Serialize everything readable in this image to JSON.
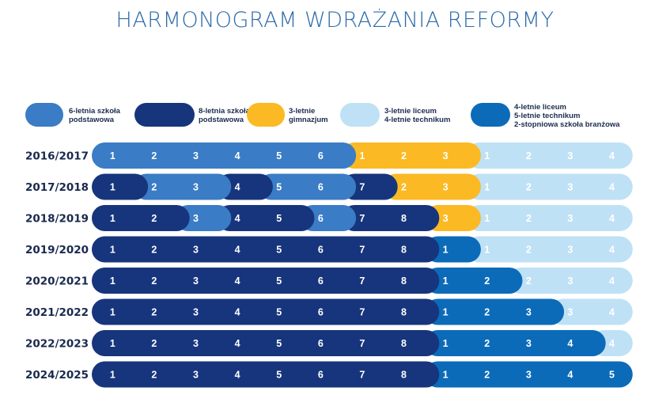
{
  "title": "HARMONOGRAM WDRAŻANIA REFORMY",
  "colors": {
    "sp6": "#3a7cc5",
    "sp8": "#17357c",
    "gim": "#fbb923",
    "old_hs": "#bfe1f5",
    "new_hs": "#0b6bb8"
  },
  "legend": [
    {
      "key": "sp6",
      "lines": [
        "6-letnia szkoła",
        "podstawowa"
      ]
    },
    {
      "key": "sp8",
      "lines": [
        "8-letnia szkoła",
        "podstawowa"
      ]
    },
    {
      "key": "gim",
      "lines": [
        "3-letnie",
        "gimnazjum"
      ]
    },
    {
      "key": "old_hs",
      "lines": [
        "3-letnie liceum",
        "4-letnie technikum"
      ]
    },
    {
      "key": "new_hs",
      "lines": [
        "4-letnie liceum",
        "5-letnie technikum",
        "2-stopniowa szkoła branżowa"
      ]
    }
  ],
  "chart_data": {
    "type": "table",
    "rows": [
      {
        "year": "2016/2017",
        "cells": [
          {
            "n": "1",
            "t": "sp6"
          },
          {
            "n": "2",
            "t": "sp6"
          },
          {
            "n": "3",
            "t": "sp6"
          },
          {
            "n": "4",
            "t": "sp6"
          },
          {
            "n": "5",
            "t": "sp6"
          },
          {
            "n": "6",
            "t": "sp6"
          },
          {
            "n": "1",
            "t": "gim"
          },
          {
            "n": "2",
            "t": "gim"
          },
          {
            "n": "3",
            "t": "gim"
          },
          {
            "n": "1",
            "t": "old_hs"
          },
          {
            "n": "2",
            "t": "old_hs"
          },
          {
            "n": "3",
            "t": "old_hs"
          },
          {
            "n": "4",
            "t": "old_hs"
          }
        ]
      },
      {
        "year": "2017/2018",
        "cells": [
          {
            "n": "1",
            "t": "sp8"
          },
          {
            "n": "2",
            "t": "sp6"
          },
          {
            "n": "3",
            "t": "sp6"
          },
          {
            "n": "4",
            "t": "sp8"
          },
          {
            "n": "5",
            "t": "sp6"
          },
          {
            "n": "6",
            "t": "sp6"
          },
          {
            "n": "7",
            "t": "sp8"
          },
          {
            "n": "2",
            "t": "gim"
          },
          {
            "n": "3",
            "t": "gim"
          },
          {
            "n": "1",
            "t": "old_hs"
          },
          {
            "n": "2",
            "t": "old_hs"
          },
          {
            "n": "3",
            "t": "old_hs"
          },
          {
            "n": "4",
            "t": "old_hs"
          }
        ]
      },
      {
        "year": "2018/2019",
        "cells": [
          {
            "n": "1",
            "t": "sp8"
          },
          {
            "n": "2",
            "t": "sp8"
          },
          {
            "n": "3",
            "t": "sp6"
          },
          {
            "n": "4",
            "t": "sp8"
          },
          {
            "n": "5",
            "t": "sp8"
          },
          {
            "n": "6",
            "t": "sp6"
          },
          {
            "n": "7",
            "t": "sp8"
          },
          {
            "n": "8",
            "t": "sp8"
          },
          {
            "n": "3",
            "t": "gim"
          },
          {
            "n": "1",
            "t": "old_hs"
          },
          {
            "n": "2",
            "t": "old_hs"
          },
          {
            "n": "3",
            "t": "old_hs"
          },
          {
            "n": "4",
            "t": "old_hs"
          }
        ]
      },
      {
        "year": "2019/2020",
        "cells": [
          {
            "n": "1",
            "t": "sp8"
          },
          {
            "n": "2",
            "t": "sp8"
          },
          {
            "n": "3",
            "t": "sp8"
          },
          {
            "n": "4",
            "t": "sp8"
          },
          {
            "n": "5",
            "t": "sp8"
          },
          {
            "n": "6",
            "t": "sp8"
          },
          {
            "n": "7",
            "t": "sp8"
          },
          {
            "n": "8",
            "t": "sp8"
          },
          {
            "n": "1",
            "t": "new_hs"
          },
          {
            "n": "1",
            "t": "old_hs"
          },
          {
            "n": "2",
            "t": "old_hs"
          },
          {
            "n": "3",
            "t": "old_hs"
          },
          {
            "n": "4",
            "t": "old_hs"
          }
        ]
      },
      {
        "year": "2020/2021",
        "cells": [
          {
            "n": "1",
            "t": "sp8"
          },
          {
            "n": "2",
            "t": "sp8"
          },
          {
            "n": "3",
            "t": "sp8"
          },
          {
            "n": "4",
            "t": "sp8"
          },
          {
            "n": "5",
            "t": "sp8"
          },
          {
            "n": "6",
            "t": "sp8"
          },
          {
            "n": "7",
            "t": "sp8"
          },
          {
            "n": "8",
            "t": "sp8"
          },
          {
            "n": "1",
            "t": "new_hs"
          },
          {
            "n": "2",
            "t": "new_hs"
          },
          {
            "n": "2",
            "t": "old_hs"
          },
          {
            "n": "3",
            "t": "old_hs"
          },
          {
            "n": "4",
            "t": "old_hs"
          }
        ]
      },
      {
        "year": "2021/2022",
        "cells": [
          {
            "n": "1",
            "t": "sp8"
          },
          {
            "n": "2",
            "t": "sp8"
          },
          {
            "n": "3",
            "t": "sp8"
          },
          {
            "n": "4",
            "t": "sp8"
          },
          {
            "n": "5",
            "t": "sp8"
          },
          {
            "n": "6",
            "t": "sp8"
          },
          {
            "n": "7",
            "t": "sp8"
          },
          {
            "n": "8",
            "t": "sp8"
          },
          {
            "n": "1",
            "t": "new_hs"
          },
          {
            "n": "2",
            "t": "new_hs"
          },
          {
            "n": "3",
            "t": "new_hs"
          },
          {
            "n": "3",
            "t": "old_hs"
          },
          {
            "n": "4",
            "t": "old_hs"
          }
        ]
      },
      {
        "year": "2022/2023",
        "cells": [
          {
            "n": "1",
            "t": "sp8"
          },
          {
            "n": "2",
            "t": "sp8"
          },
          {
            "n": "3",
            "t": "sp8"
          },
          {
            "n": "4",
            "t": "sp8"
          },
          {
            "n": "5",
            "t": "sp8"
          },
          {
            "n": "6",
            "t": "sp8"
          },
          {
            "n": "7",
            "t": "sp8"
          },
          {
            "n": "8",
            "t": "sp8"
          },
          {
            "n": "1",
            "t": "new_hs"
          },
          {
            "n": "2",
            "t": "new_hs"
          },
          {
            "n": "3",
            "t": "new_hs"
          },
          {
            "n": "4",
            "t": "new_hs"
          },
          {
            "n": "4",
            "t": "old_hs"
          }
        ]
      },
      {
        "year": "2024/2025",
        "cells": [
          {
            "n": "1",
            "t": "sp8"
          },
          {
            "n": "2",
            "t": "sp8"
          },
          {
            "n": "3",
            "t": "sp8"
          },
          {
            "n": "4",
            "t": "sp8"
          },
          {
            "n": "5",
            "t": "sp8"
          },
          {
            "n": "6",
            "t": "sp8"
          },
          {
            "n": "7",
            "t": "sp8"
          },
          {
            "n": "8",
            "t": "sp8"
          },
          {
            "n": "1",
            "t": "new_hs"
          },
          {
            "n": "2",
            "t": "new_hs"
          },
          {
            "n": "3",
            "t": "new_hs"
          },
          {
            "n": "4",
            "t": "new_hs"
          },
          {
            "n": "5",
            "t": "new_hs"
          }
        ]
      }
    ]
  }
}
